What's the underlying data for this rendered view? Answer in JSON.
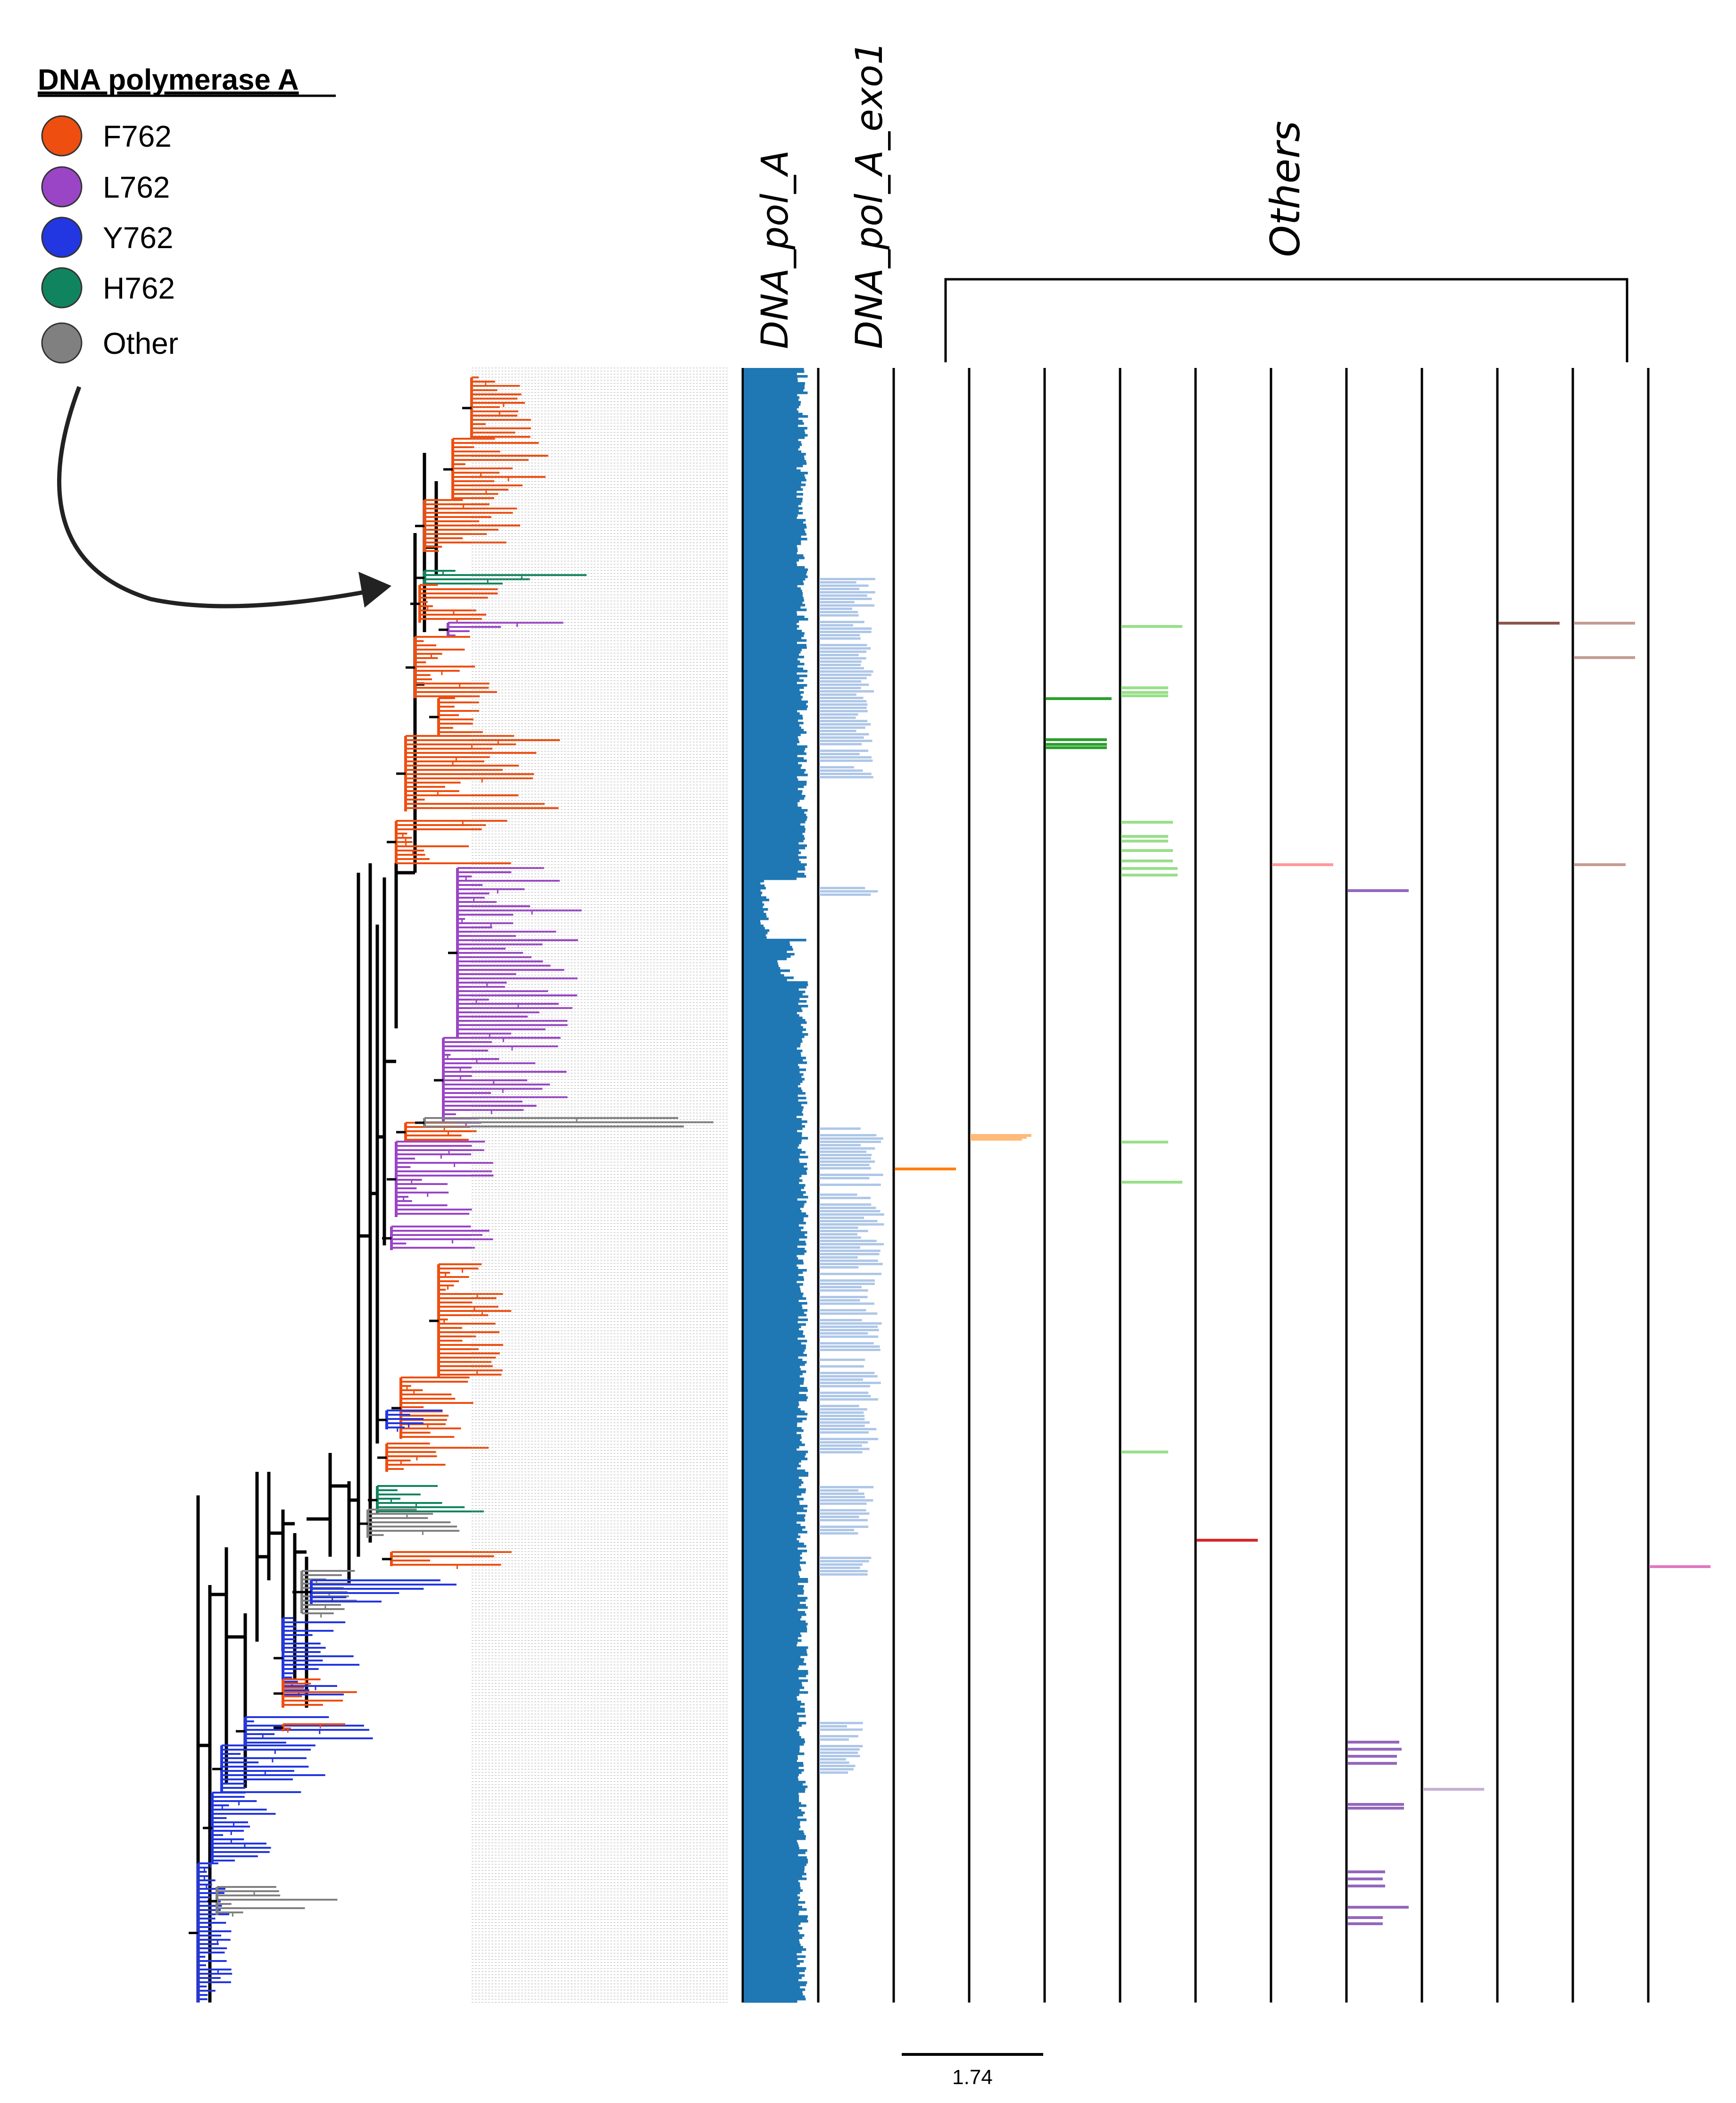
{
  "legend": {
    "title": "DNA polymerase A",
    "items": [
      {
        "label": "F762",
        "color": "#EE4E0F"
      },
      {
        "label": "L762",
        "color": "#9A45C6"
      },
      {
        "label": "Y762",
        "color": "#2236E1"
      },
      {
        "label": "H762",
        "color": "#10845F"
      },
      {
        "label": "Other",
        "color": "#808080"
      }
    ]
  },
  "columns": {
    "dna_pol_a": {
      "label": "DNA_pol_A",
      "color": "#1F77B4"
    },
    "dna_pol_a_exo1": {
      "label": "DNA_pol_A_exo1",
      "color": "#AEC7E8"
    },
    "others": {
      "label": "Others"
    },
    "other_colors": [
      "#FF7F0E",
      "#FFBB78",
      "#2CA02C",
      "#98DF8A",
      "#D62728",
      "#FF9896",
      "#9467BD",
      "#C5B0D5",
      "#8C564B",
      "#C49C94",
      "#E377C2"
    ]
  },
  "scale_bar": {
    "label": "1.74",
    "value": 1.74
  },
  "palette": {
    "tree_black": "#000000",
    "leaf_gray": "#9A9A9A"
  }
}
